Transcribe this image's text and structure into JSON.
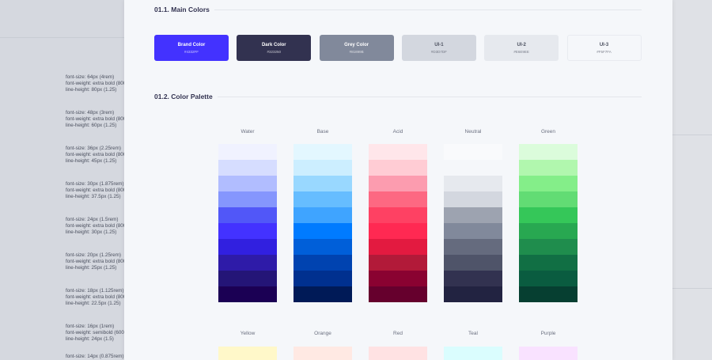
{
  "typography_specs": [
    [
      "font-size: 64px (4rem)",
      "font-weight: extra bold (800)",
      "line-height: 80px (1.25)"
    ],
    [
      "font-size: 48px (3rem)",
      "font-weight: extra bold (800)",
      "line-height: 60px (1.25)"
    ],
    [
      "font-size: 36px (2.25rem)",
      "font-weight: extra bold (800)",
      "line-height: 45px (1.25)"
    ],
    [
      "font-size: 30px (1.875rem)",
      "font-weight: extra bold (800)",
      "line-height: 37.5px (1.25)"
    ],
    [
      "font-size: 24px (1.5rem)",
      "font-weight: extra bold (800)",
      "line-height: 30px (1.25)"
    ],
    [
      "font-size: 20px (1.25rem)",
      "font-weight: extra bold (800)",
      "line-height: 25px (1.25)"
    ],
    [
      "font-size: 18px (1.125rem)",
      "font-weight: extra bold (800)",
      "line-height: 22.5px (1.25)"
    ],
    [
      "font-size: 16px (1rem)",
      "font-weight: semibold (600)",
      "line-height: 24px (1.5)"
    ],
    [
      "font-size: 14px (0.875rem)"
    ]
  ],
  "main_colors": {
    "title": "01.1. Main Colors",
    "items": [
      {
        "name": "Brand Color",
        "hex": "#4332FF",
        "text": "#ffffff"
      },
      {
        "name": "Dark Color",
        "hex": "#323250",
        "text": "#ffffff"
      },
      {
        "name": "Grey Color",
        "hex": "#81899B",
        "text": "#ffffff"
      },
      {
        "name": "UI-1",
        "hex": "#D3D7DF",
        "text": "#4a4f5e"
      },
      {
        "name": "UI-2",
        "hex": "#E6E9EE",
        "text": "#4a4f5e"
      },
      {
        "name": "UI-3",
        "hex": "#F5F7FA",
        "text": "#4a4f5e"
      }
    ]
  },
  "palette": {
    "title": "01.2. Color Palette",
    "row1": [
      {
        "name": "Water",
        "shades": [
          "#f0f2ff",
          "#d6ddff",
          "#b1bdff",
          "#8596fd",
          "#5157f8",
          "#4332ff",
          "#3120e0",
          "#2e1ba8",
          "#241577",
          "#1b0054"
        ]
      },
      {
        "name": "Base",
        "shades": [
          "#e3f7ff",
          "#cceeff",
          "#99d8ff",
          "#66bdff",
          "#3fa4ff",
          "#007bff",
          "#005fd9",
          "#0043b0",
          "#00308f",
          "#001a57"
        ]
      },
      {
        "name": "Acid",
        "shades": [
          "#ffe6ea",
          "#ffccd4",
          "#fc9caf",
          "#fd6882",
          "#fe4163",
          "#ff2952",
          "#e31a40",
          "#b21a39",
          "#8a0231",
          "#66002d"
        ]
      },
      {
        "name": "Neutral",
        "shades": [
          "#f9fafc",
          "",
          "#e6e9ee",
          "#d3d7df",
          "#9da3b0",
          "#81899b",
          "#656b7e",
          "#4f5469",
          "#323250",
          "#222341"
        ]
      },
      {
        "name": "Green",
        "shades": [
          "#dbfcdb",
          "#b1f7ae",
          "#84ee89",
          "#62dc74",
          "#35c759",
          "#28a851",
          "#1f8d4d",
          "#116f44",
          "#0a5c40",
          "#063f31"
        ]
      }
    ],
    "row2": [
      {
        "name": "Yellow",
        "shades": [
          "#fff8c9"
        ]
      },
      {
        "name": "Orange",
        "shades": [
          "#ffe9e3"
        ]
      },
      {
        "name": "Red",
        "shades": [
          "#ffe2e3"
        ]
      },
      {
        "name": "Teal",
        "shades": [
          "#dafdfe"
        ]
      },
      {
        "name": "Purple",
        "shades": [
          "#f9e2ff"
        ]
      }
    ]
  }
}
